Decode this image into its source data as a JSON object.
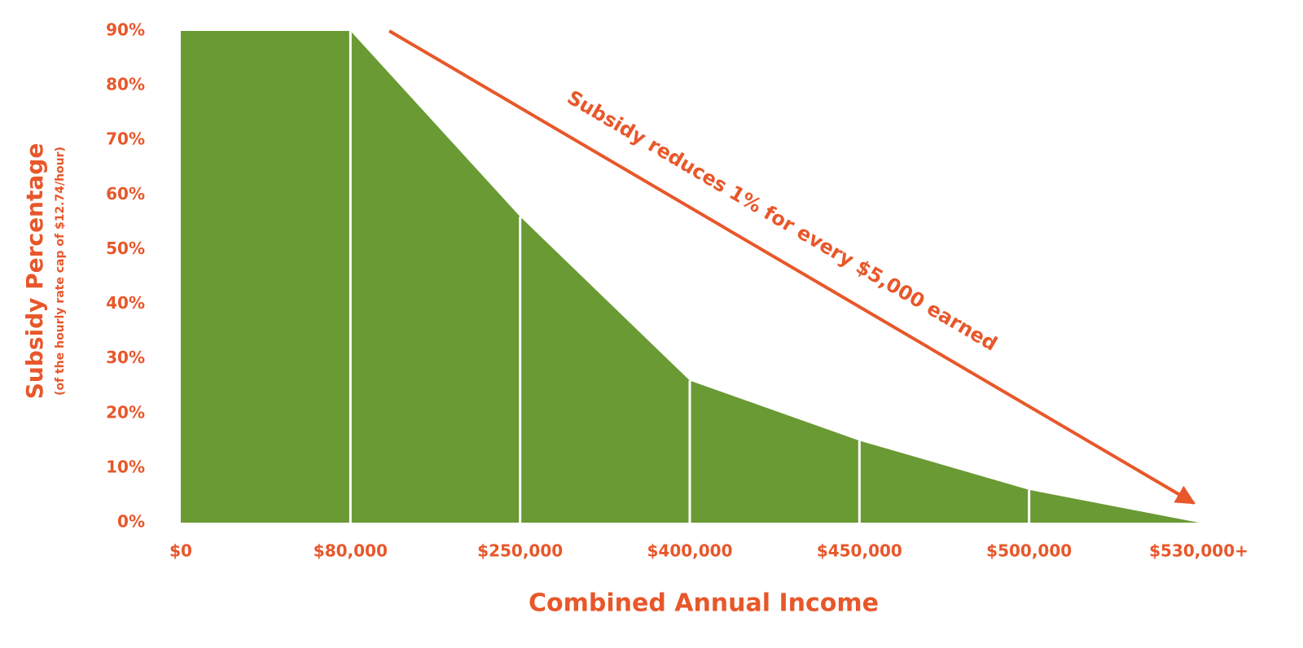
{
  "chart_data": {
    "type": "area",
    "x_label": "Combined Annual Income",
    "y_label": "Subsidy Percentage",
    "y_sublabel": "(of the hourly rate cap of $12.74/hour)",
    "annotation": "Subsidy reduces 1% for every $5,000 earned",
    "categories": [
      "$0",
      "$80,000",
      "$250,000",
      "$400,000",
      "$450,000",
      "$500,000",
      "$530,000+"
    ],
    "values": [
      90,
      90,
      56,
      26,
      15,
      6,
      0
    ],
    "color": "#6a9a34",
    "ylim": [
      0,
      90
    ],
    "yticks": [
      {
        "value": 0,
        "label": "0%"
      },
      {
        "value": 10,
        "label": "10%"
      },
      {
        "value": 20,
        "label": "20%"
      },
      {
        "value": 30,
        "label": "30%"
      },
      {
        "value": 40,
        "label": "40%"
      },
      {
        "value": 50,
        "label": "50%"
      },
      {
        "value": 60,
        "label": "60%"
      },
      {
        "value": 70,
        "label": "70%"
      },
      {
        "value": 80,
        "label": "80%"
      },
      {
        "value": 90,
        "label": "90%"
      }
    ],
    "grid": false
  }
}
